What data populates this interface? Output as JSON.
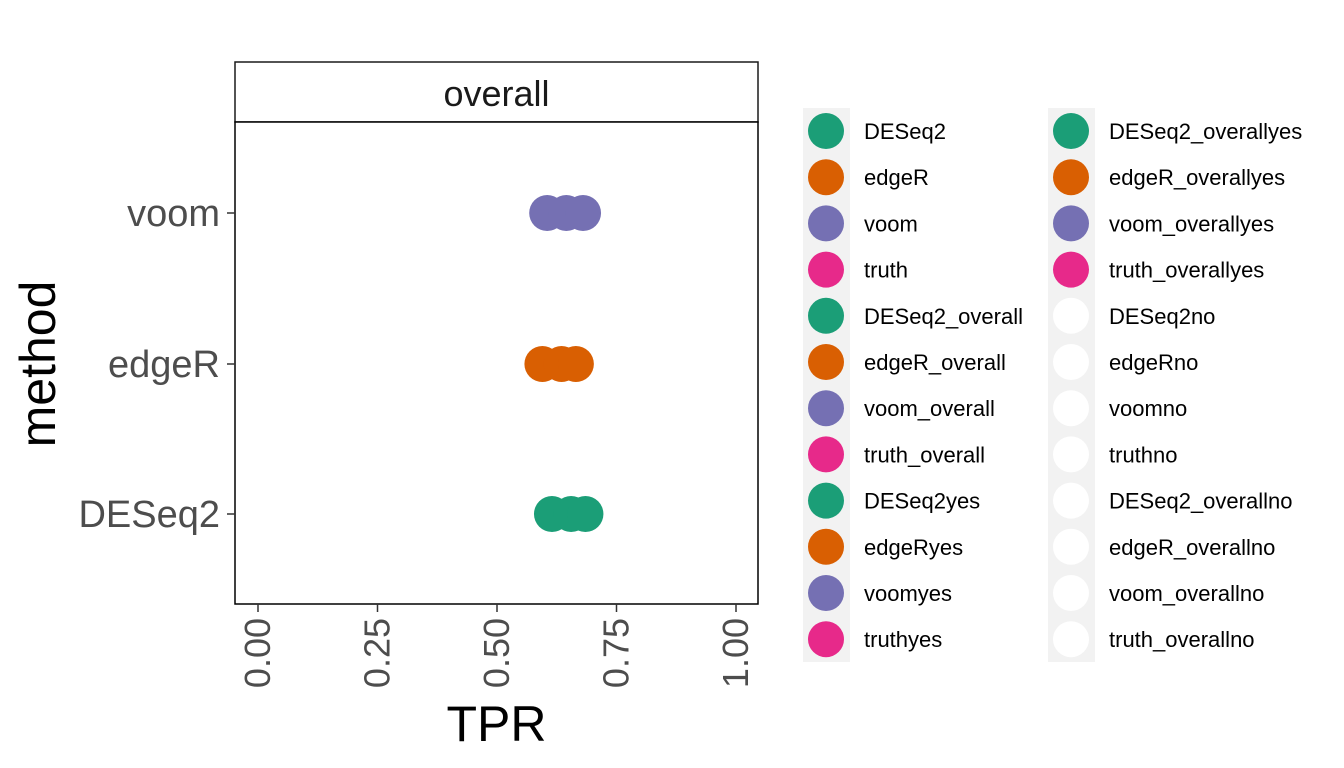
{
  "chart_data": {
    "type": "scatter",
    "facet_title": "overall",
    "xlabel": "TPR",
    "ylabel": "method",
    "xlim": [
      0,
      1
    ],
    "x_ticks": [
      "0.00",
      "0.25",
      "0.50",
      "0.75",
      "1.00"
    ],
    "categories": [
      "DESeq2",
      "edgeR",
      "voom"
    ],
    "grid": false,
    "legend_position": "right",
    "colors": {
      "DESeq2": "#1b9e77",
      "edgeR": "#d95f02",
      "voom": "#7570b3",
      "truth": "#e7298a",
      "none": "#ffffff"
    },
    "points": [
      {
        "method": "DESeq2",
        "x": 0.615,
        "color": "DESeq2"
      },
      {
        "method": "DESeq2",
        "x": 0.655,
        "color": "DESeq2"
      },
      {
        "method": "DESeq2",
        "x": 0.685,
        "color": "DESeq2"
      },
      {
        "method": "edgeR",
        "x": 0.595,
        "color": "edgeR"
      },
      {
        "method": "edgeR",
        "x": 0.635,
        "color": "edgeR"
      },
      {
        "method": "edgeR",
        "x": 0.665,
        "color": "edgeR"
      },
      {
        "method": "voom",
        "x": 0.605,
        "color": "voom"
      },
      {
        "method": "voom",
        "x": 0.645,
        "color": "voom"
      },
      {
        "method": "voom",
        "x": 0.68,
        "color": "voom"
      }
    ],
    "legend": [
      [
        {
          "label": "DESeq2",
          "color": "DESeq2"
        },
        {
          "label": "edgeR",
          "color": "edgeR"
        },
        {
          "label": "voom",
          "color": "voom"
        },
        {
          "label": "truth",
          "color": "truth"
        },
        {
          "label": "DESeq2_overall",
          "color": "DESeq2"
        },
        {
          "label": "edgeR_overall",
          "color": "edgeR"
        },
        {
          "label": "voom_overall",
          "color": "voom"
        },
        {
          "label": "truth_overall",
          "color": "truth"
        },
        {
          "label": "DESeq2yes",
          "color": "DESeq2"
        },
        {
          "label": "edgeRyes",
          "color": "edgeR"
        },
        {
          "label": "voomyes",
          "color": "voom"
        },
        {
          "label": "truthyes",
          "color": "truth"
        }
      ],
      [
        {
          "label": "DESeq2_overallyes",
          "color": "DESeq2"
        },
        {
          "label": "edgeR_overallyes",
          "color": "edgeR"
        },
        {
          "label": "voom_overallyes",
          "color": "voom"
        },
        {
          "label": "truth_overallyes",
          "color": "truth"
        },
        {
          "label": "DESeq2no",
          "color": "none"
        },
        {
          "label": "edgeRno",
          "color": "none"
        },
        {
          "label": "voomno",
          "color": "none"
        },
        {
          "label": "truthno",
          "color": "none"
        },
        {
          "label": "DESeq2_overallno",
          "color": "none"
        },
        {
          "label": "edgeR_overallno",
          "color": "none"
        },
        {
          "label": "voom_overallno",
          "color": "none"
        },
        {
          "label": "truth_overallno",
          "color": "none"
        }
      ]
    ]
  }
}
